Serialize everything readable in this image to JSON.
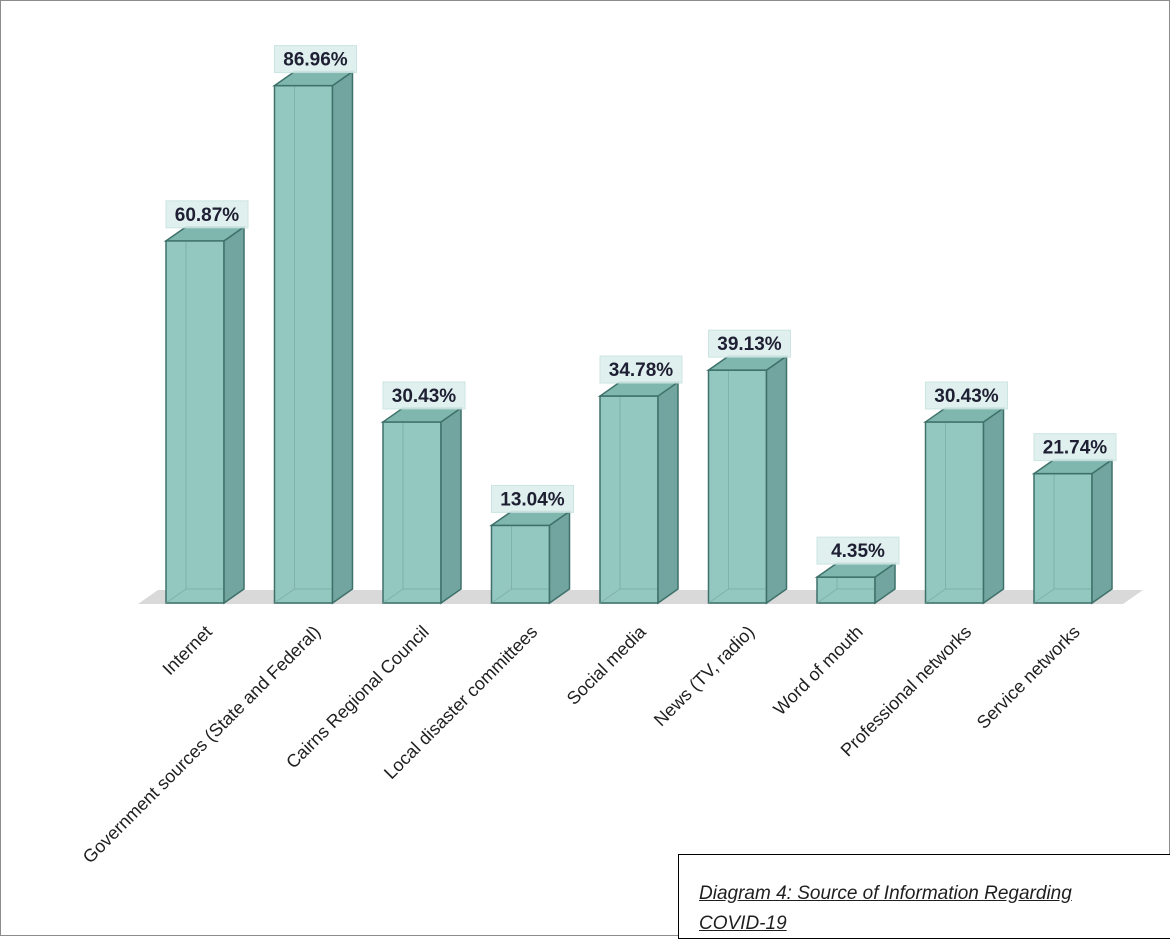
{
  "caption": "Diagram 4: Source of Information Regarding COVID-19",
  "chart_data": {
    "type": "bar",
    "categories": [
      "Internet",
      "Government sources (State and Federal)",
      "Cairns Regional Council",
      "Local disaster committees",
      "Social media",
      "News (TV, radio)",
      "Word of mouth",
      "Professional networks",
      "Service networks"
    ],
    "values": [
      60.87,
      86.96,
      30.43,
      13.04,
      34.78,
      39.13,
      4.35,
      30.43,
      21.74
    ],
    "value_labels": [
      "60.87%",
      "86.96%",
      "30.43%",
      "13.04%",
      "34.78%",
      "39.13%",
      "4.35%",
      "30.43%",
      "21.74%"
    ],
    "ylim": [
      0,
      100
    ],
    "grid": false,
    "style": "3d-columns",
    "colors": {
      "front": "#93c8c0",
      "side": "#72a59f",
      "top": "#7fb7ae",
      "edge": "#3f716b",
      "floor": "#d9d9d9"
    }
  }
}
